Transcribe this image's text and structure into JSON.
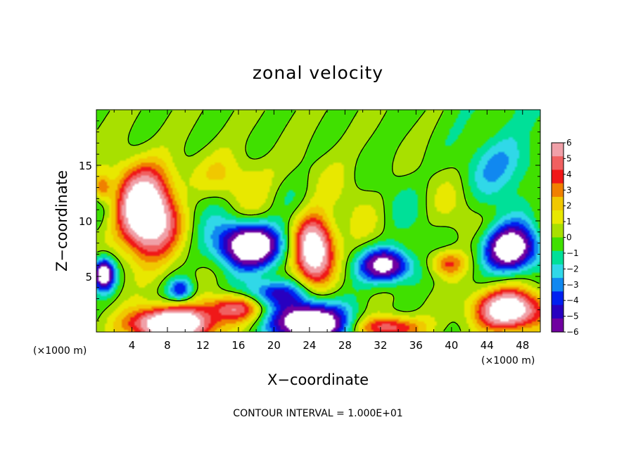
{
  "chart_data": {
    "type": "heatmap",
    "title": "zonal velocity",
    "xlabel": "X−coordinate",
    "ylabel": "Z−coordinate",
    "x_unit_left": "(×1000 m)",
    "x_unit_right": "(×1000 m)",
    "x_ticks": [
      4,
      8,
      12,
      16,
      20,
      24,
      28,
      32,
      36,
      40,
      44,
      48
    ],
    "x_tick_labels": [
      "4",
      "8",
      "12",
      "16",
      "20",
      "24",
      "28",
      "32",
      "36",
      "40",
      "44",
      "48"
    ],
    "y_ticks": [
      5,
      10,
      15
    ],
    "y_tick_labels": [
      "5",
      "10",
      "15"
    ],
    "xlim": [
      0,
      50
    ],
    "ylim": [
      0,
      20
    ],
    "footer": "CONTOUR INTERVAL = 1.000E+01",
    "colorbar": {
      "labels": [
        "6",
        "5",
        "4",
        "3",
        "2",
        "1",
        "0",
        "−1",
        "−2",
        "−3",
        "−4",
        "−5",
        "−6"
      ],
      "values": [
        6,
        5,
        4,
        3,
        2,
        1,
        0,
        -1,
        -2,
        -3,
        -4,
        -5,
        -6
      ],
      "colors": [
        "#f0a0a8",
        "#f06060",
        "#f01818",
        "#f08000",
        "#f0c800",
        "#e8e800",
        "#a8e000",
        "#40e000",
        "#00e098",
        "#30d8e8",
        "#1088f0",
        "#0020f0",
        "#2800c0",
        "#7000a0"
      ],
      "over_color": "#ffffff"
    },
    "features": [
      {
        "kind": "blob",
        "x": 5.5,
        "z": 10.5,
        "rx": 3.2,
        "rz": 3.6,
        "value": 11
      },
      {
        "kind": "blob",
        "x": 17.5,
        "z": 7.8,
        "rx": 3.6,
        "rz": 2.0,
        "value": -11
      },
      {
        "kind": "blob",
        "x": 24.5,
        "z": 7.5,
        "rx": 2.2,
        "rz": 3.0,
        "value": 11
      },
      {
        "kind": "blob",
        "x": 8.5,
        "z": 0.7,
        "rx": 4.5,
        "rz": 1.5,
        "value": 12
      },
      {
        "kind": "blob",
        "x": 24.0,
        "z": 0.8,
        "rx": 4.0,
        "rz": 1.8,
        "value": -12
      },
      {
        "kind": "blob",
        "x": 32.5,
        "z": 6.0,
        "rx": 2.8,
        "rz": 1.5,
        "value": -9
      },
      {
        "kind": "blob",
        "x": 46.5,
        "z": 7.5,
        "rx": 3.0,
        "rz": 2.0,
        "value": -10
      },
      {
        "kind": "blob",
        "x": 46.5,
        "z": 2.0,
        "rx": 3.8,
        "rz": 1.8,
        "value": 10
      },
      {
        "kind": "blob",
        "x": 15.5,
        "z": 2.2,
        "rx": 3.0,
        "rz": 1.2,
        "value": 6
      },
      {
        "kind": "blob",
        "x": 39.5,
        "z": 6.2,
        "rx": 2.0,
        "rz": 1.2,
        "value": 4.5
      },
      {
        "kind": "blob",
        "x": 0.8,
        "z": 5.2,
        "rx": 1.2,
        "rz": 1.4,
        "value": -10
      },
      {
        "kind": "blob",
        "x": 33.0,
        "z": 0.4,
        "rx": 3.5,
        "rz": 1.0,
        "value": 6
      },
      {
        "kind": "blob",
        "x": 13.0,
        "z": 14.0,
        "rx": 10.0,
        "rz": 2.0,
        "value": 1.5
      },
      {
        "kind": "blob",
        "x": 46.0,
        "z": 15.0,
        "rx": 4.0,
        "rz": 2.5,
        "value": -2.5
      },
      {
        "kind": "blob",
        "x": 0.6,
        "z": 13.0,
        "rx": 1.0,
        "rz": 1.2,
        "value": 4
      },
      {
        "kind": "blob",
        "x": 20.0,
        "z": 3.5,
        "rx": 3.5,
        "rz": 1.2,
        "value": -5
      },
      {
        "kind": "blob",
        "x": 9.5,
        "z": 3.8,
        "rx": 1.4,
        "rz": 1.0,
        "value": -5
      }
    ]
  }
}
